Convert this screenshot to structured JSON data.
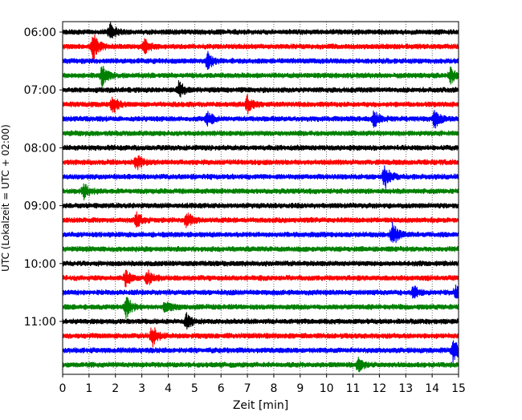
{
  "chart_data": {
    "type": "line",
    "title": "",
    "xlabel": "Zeit  [min]",
    "ylabel": "UTC (Lokalzeit = UTC + 02:00)",
    "xlim": [
      0,
      15
    ],
    "x_ticks": [
      0,
      1,
      2,
      3,
      4,
      5,
      6,
      7,
      8,
      9,
      10,
      11,
      12,
      13,
      14,
      15
    ],
    "y_tick_labels": [
      "06:00",
      "07:00",
      "08:00",
      "09:00",
      "10:00",
      "11:00"
    ],
    "y_tick_rows": [
      0,
      4,
      8,
      12,
      16,
      20
    ],
    "vertical_grid": "dotted at every minute",
    "color_cycle": [
      "#000000",
      "#ff0000",
      "#0000ff",
      "#008000"
    ],
    "trace_interval_min": 15,
    "traces": [
      {
        "start": "06:00",
        "color": "#000000",
        "events": [
          {
            "t": 1.8,
            "amp": 1.6
          }
        ]
      },
      {
        "start": "06:15",
        "color": "#ff0000",
        "events": [
          {
            "t": 1.15,
            "amp": 2.2
          },
          {
            "t": 3.1,
            "amp": 1.1
          }
        ]
      },
      {
        "start": "06:30",
        "color": "#0000ff",
        "events": [
          {
            "t": 5.5,
            "amp": 1.3
          }
        ]
      },
      {
        "start": "06:45",
        "color": "#008000",
        "events": [
          {
            "t": 1.5,
            "amp": 1.6
          },
          {
            "t": 14.7,
            "amp": 1.1
          }
        ]
      },
      {
        "start": "07:00",
        "color": "#000000",
        "events": [
          {
            "t": 4.4,
            "amp": 1.3
          }
        ]
      },
      {
        "start": "07:15",
        "color": "#ff0000",
        "events": [
          {
            "t": 1.9,
            "amp": 1.5
          },
          {
            "t": 7.0,
            "amp": 1.4
          }
        ]
      },
      {
        "start": "07:30",
        "color": "#0000ff",
        "events": [
          {
            "t": 5.5,
            "amp": 1.2
          },
          {
            "t": 11.8,
            "amp": 1.3
          },
          {
            "t": 14.1,
            "amp": 1.5
          }
        ]
      },
      {
        "start": "07:45",
        "color": "#008000",
        "events": []
      },
      {
        "start": "08:00",
        "color": "#000000",
        "events": []
      },
      {
        "start": "08:15",
        "color": "#ff0000",
        "events": [
          {
            "t": 2.8,
            "amp": 1.2
          }
        ]
      },
      {
        "start": "08:30",
        "color": "#0000ff",
        "events": [
          {
            "t": 12.2,
            "amp": 2.0
          }
        ]
      },
      {
        "start": "08:45",
        "color": "#008000",
        "events": [
          {
            "t": 0.8,
            "amp": 1.2
          }
        ]
      },
      {
        "start": "09:00",
        "color": "#000000",
        "events": []
      },
      {
        "start": "09:15",
        "color": "#ff0000",
        "events": [
          {
            "t": 2.8,
            "amp": 1.1
          },
          {
            "t": 4.7,
            "amp": 1.3
          }
        ]
      },
      {
        "start": "09:30",
        "color": "#0000ff",
        "events": [
          {
            "t": 12.5,
            "amp": 1.9
          }
        ]
      },
      {
        "start": "09:45",
        "color": "#008000",
        "events": []
      },
      {
        "start": "10:00",
        "color": "#000000",
        "events": []
      },
      {
        "start": "10:15",
        "color": "#ff0000",
        "events": [
          {
            "t": 2.4,
            "amp": 1.3
          },
          {
            "t": 3.2,
            "amp": 1.3
          }
        ]
      },
      {
        "start": "10:30",
        "color": "#0000ff",
        "events": [
          {
            "t": 13.3,
            "amp": 1.0
          },
          {
            "t": 14.9,
            "amp": 1.0
          }
        ]
      },
      {
        "start": "10:45",
        "color": "#008000",
        "events": [
          {
            "t": 2.4,
            "amp": 1.8
          },
          {
            "t": 3.9,
            "amp": 1.0
          }
        ]
      },
      {
        "start": "11:00",
        "color": "#000000",
        "events": [
          {
            "t": 4.7,
            "amp": 1.1
          }
        ]
      },
      {
        "start": "11:15",
        "color": "#ff0000",
        "events": [
          {
            "t": 3.4,
            "amp": 1.8
          }
        ]
      },
      {
        "start": "11:30",
        "color": "#0000ff",
        "events": [
          {
            "t": 14.8,
            "amp": 1.8
          }
        ]
      },
      {
        "start": "11:45",
        "color": "#008000",
        "events": [
          {
            "t": 11.2,
            "amp": 1.0
          }
        ]
      }
    ]
  }
}
